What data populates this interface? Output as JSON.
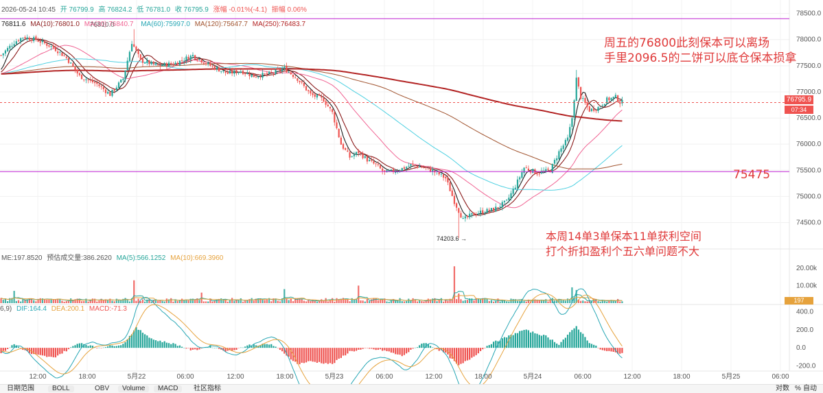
{
  "header": {
    "main_line": [
      "2026-05-24 10:45",
      "开 76799.9",
      "高 76824.2",
      "低 76781.0",
      "收 76795.9",
      "涨幅 -0.01%(-4.1)",
      "振幅 0.06%"
    ],
    "ma_line": {
      "first": "76811.6",
      "ma10": "MA(10):76801.0",
      "ma30": "MA(30):76840.7",
      "ma60": "MA(60):75997.0",
      "ma120": "MA(120):75647.7",
      "ma250": "MA(250):76483.7"
    },
    "overlap_text": "76810.0",
    "vol_line": {
      "me": "ME:197.8520",
      "est": "预估成交量:386.2620",
      "ma5": "MA(5):566.1252",
      "ma10": "MA(10):669.3960"
    },
    "macd_line": {
      "prefix": "6,9)",
      "dif": "DIF:164.4",
      "dea": "DEA:200.1",
      "macd": "MACD:-71.3"
    }
  },
  "annotations": {
    "top_line1": "周五的76800此刻保本可以离场",
    "top_line2": "手里2096.5的二饼可以底仓保本损拿",
    "level": "75475",
    "bottom_line1": "本周14单3单保本11单获利空间",
    "bottom_line2": "打个折扣盈利个五六单问题不大",
    "low_label": "74203.6 →"
  },
  "price_tags": {
    "current": "76795.9",
    "countdown": "07:34",
    "volume": "197"
  },
  "bottom_bar": {
    "labels": [
      "日期范围",
      "BOLL",
      "OBV",
      "Volume",
      "MACD",
      "社区指标"
    ],
    "right": [
      "对数",
      "%",
      "自动"
    ]
  },
  "colors": {
    "up": "#26a69a",
    "down": "#ef5350",
    "ma5": "#1a1a1a",
    "ma10": "#8b1a1a",
    "ma30": "#f06292",
    "ma60": "#4dd0e1",
    "ma120": "#a0522d",
    "ma250": "#b22222",
    "hline": "#c026d3",
    "annotation": "#e03a3a"
  },
  "chart_data": [
    {
      "type": "candlestick",
      "y_ticks": [
        78500,
        78000,
        77500,
        77000,
        76500,
        76000,
        75500,
        75000,
        74500
      ],
      "ylim": [
        74100,
        78600
      ],
      "x_ticks": [
        "12:00",
        "18:00",
        "5月22",
        "06:00",
        "12:00",
        "18:00",
        "5月23",
        "06:00",
        "12:00",
        "18:00",
        "5月24",
        "06:00",
        "12:00",
        "18:00",
        "5月25",
        "06:00"
      ],
      "horizontal_levels": [
        78400,
        75475,
        76795.9
      ],
      "anchors": [
        [
          0,
          77700
        ],
        [
          6,
          77950
        ],
        [
          10,
          78050
        ],
        [
          16,
          78000
        ],
        [
          24,
          77850
        ],
        [
          30,
          77650
        ],
        [
          36,
          77300
        ],
        [
          44,
          77150
        ],
        [
          50,
          76950
        ],
        [
          56,
          77250
        ],
        [
          60,
          77950
        ],
        [
          64,
          77600
        ],
        [
          72,
          77500
        ],
        [
          80,
          77550
        ],
        [
          88,
          77700
        ],
        [
          96,
          77500
        ],
        [
          104,
          77350
        ],
        [
          110,
          77400
        ],
        [
          116,
          77300
        ],
        [
          124,
          77350
        ],
        [
          130,
          77450
        ],
        [
          136,
          77250
        ],
        [
          142,
          76950
        ],
        [
          148,
          76850
        ],
        [
          152,
          76600
        ],
        [
          156,
          76000
        ],
        [
          160,
          75750
        ],
        [
          164,
          75850
        ],
        [
          168,
          75700
        ],
        [
          172,
          75600
        ],
        [
          176,
          75450
        ],
        [
          182,
          75500
        ],
        [
          188,
          75600
        ],
        [
          194,
          75550
        ],
        [
          200,
          75450
        ],
        [
          204,
          75350
        ],
        [
          208,
          74900
        ],
        [
          212,
          74550
        ],
        [
          216,
          74650
        ],
        [
          220,
          74700
        ],
        [
          226,
          74750
        ],
        [
          232,
          74900
        ],
        [
          236,
          75200
        ],
        [
          240,
          75550
        ],
        [
          246,
          75450
        ],
        [
          252,
          75500
        ],
        [
          256,
          75850
        ],
        [
          260,
          76100
        ],
        [
          262,
          76500
        ],
        [
          264,
          77250
        ],
        [
          266,
          76900
        ],
        [
          270,
          76650
        ],
        [
          274,
          76700
        ],
        [
          278,
          76850
        ],
        [
          282,
          76900
        ],
        [
          284,
          76800
        ]
      ],
      "low_point": 74203.6
    },
    {
      "type": "bar",
      "series": "Volume",
      "y_ticks": [
        20000,
        10000
      ],
      "ylim": [
        0,
        25000
      ],
      "spikes": [
        [
          6,
          7000
        ],
        [
          61,
          13000
        ],
        [
          92,
          6000
        ],
        [
          130,
          8000
        ],
        [
          164,
          10000
        ],
        [
          208,
          21000
        ],
        [
          210,
          5500
        ],
        [
          262,
          9000
        ],
        [
          264,
          7500
        ]
      ]
    },
    {
      "type": "histogram",
      "series": "MACD",
      "y_ticks": [
        400,
        200,
        0,
        -200
      ],
      "ylim": [
        -250,
        450
      ],
      "anchors": [
        [
          0,
          -60
        ],
        [
          6,
          40
        ],
        [
          14,
          -70
        ],
        [
          24,
          -110
        ],
        [
          30,
          -30
        ],
        [
          36,
          60
        ],
        [
          44,
          0
        ],
        [
          56,
          40
        ],
        [
          62,
          220
        ],
        [
          70,
          90
        ],
        [
          80,
          40
        ],
        [
          88,
          -30
        ],
        [
          96,
          20
        ],
        [
          104,
          -40
        ],
        [
          114,
          30
        ],
        [
          124,
          40
        ],
        [
          130,
          -60
        ],
        [
          136,
          -180
        ],
        [
          142,
          -150
        ],
        [
          152,
          -180
        ],
        [
          160,
          -40
        ],
        [
          168,
          -10
        ],
        [
          176,
          -30
        ],
        [
          184,
          -90
        ],
        [
          194,
          60
        ],
        [
          204,
          -60
        ],
        [
          210,
          -200
        ],
        [
          216,
          -110
        ],
        [
          224,
          40
        ],
        [
          232,
          120
        ],
        [
          240,
          200
        ],
        [
          250,
          130
        ],
        [
          256,
          40
        ],
        [
          264,
          240
        ],
        [
          270,
          60
        ],
        [
          276,
          -30
        ],
        [
          284,
          -60
        ]
      ]
    }
  ]
}
